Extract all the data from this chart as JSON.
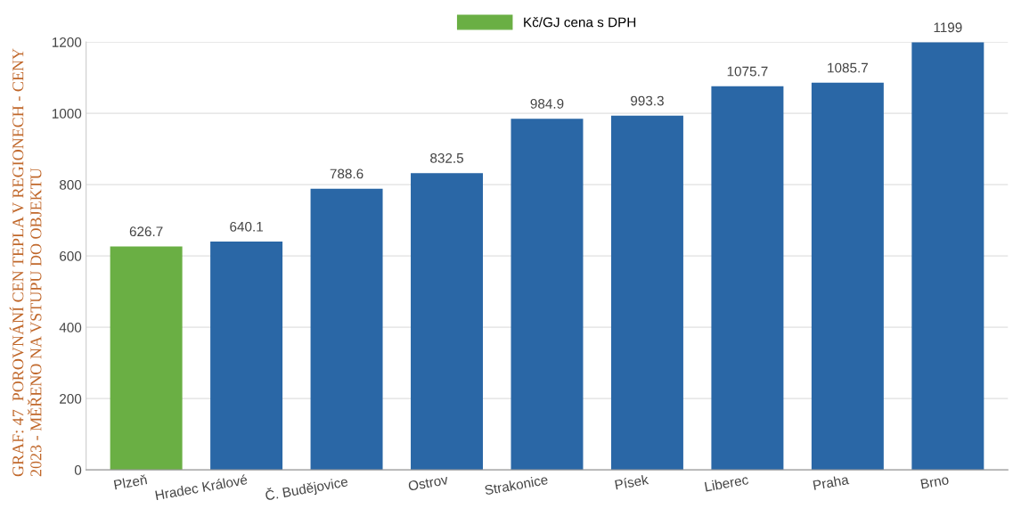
{
  "chart_data": {
    "type": "bar",
    "title": "GRAF: 47  POROVNÁNÍ CEN TEPLA V REGIONECH - CENY\n2023 - MĚŘENO NA VSTUPU DO OBJEKTU",
    "categories": [
      "Plzeň",
      "Hradec Králové",
      "Č. Budějovice",
      "Ostrov",
      "Strakonice",
      "Písek",
      "Liberec",
      "Praha",
      "Brno"
    ],
    "series": [
      {
        "name": "Kč/GJ cena s DPH",
        "colors": [
          "#6aaf44",
          "#2a67a6",
          "#2a67a6",
          "#2a67a6",
          "#2a67a6",
          "#2a67a6",
          "#2a67a6",
          "#2a67a6",
          "#2a67a6"
        ],
        "values": [
          626.7,
          640.1,
          788.6,
          832.5,
          984.9,
          993.3,
          1075.7,
          1085.7,
          1199
        ]
      }
    ],
    "ylim": [
      0,
      1200
    ],
    "yticks": [
      0,
      200,
      400,
      600,
      800,
      1000,
      1200
    ],
    "grid": "y",
    "legend": "top",
    "data_labels": true
  }
}
